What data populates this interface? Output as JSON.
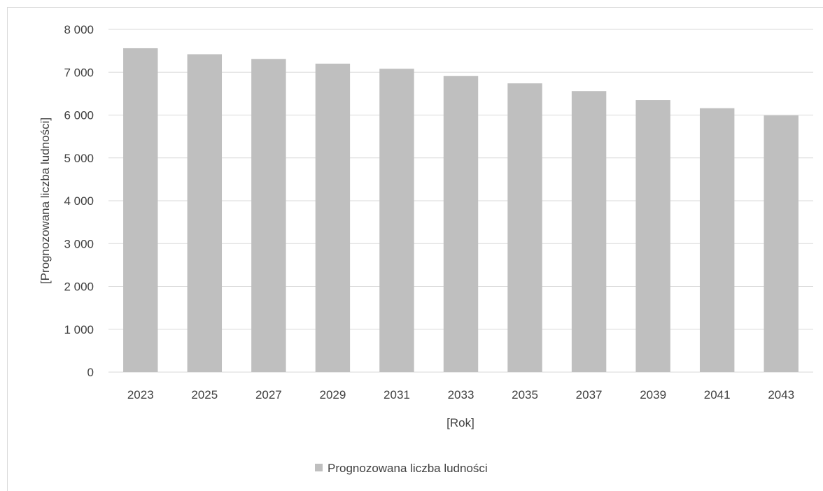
{
  "chart_data": {
    "type": "bar",
    "title": "",
    "xlabel": "[Rok]",
    "ylabel": "[Prognozowana liczba ludności]",
    "ylim": [
      0,
      8000
    ],
    "ytick_values": [
      0,
      1000,
      2000,
      3000,
      4000,
      5000,
      6000,
      7000,
      8000
    ],
    "ytick_labels": [
      "0",
      "1 000",
      "2 000",
      "3 000",
      "4 000",
      "5 000",
      "6 000",
      "7 000",
      "8 000"
    ],
    "categories": [
      "2023",
      "2025",
      "2027",
      "2029",
      "2031",
      "2033",
      "2035",
      "2037",
      "2039",
      "2041",
      "2043"
    ],
    "series": [
      {
        "name": "Prognozowana liczba ludności",
        "color": "#bfbfbf",
        "values": [
          7560,
          7420,
          7310,
          7200,
          7080,
          6910,
          6740,
          6560,
          6350,
          6160,
          5990
        ]
      }
    ],
    "grid": true,
    "legend_position": "bottom"
  }
}
